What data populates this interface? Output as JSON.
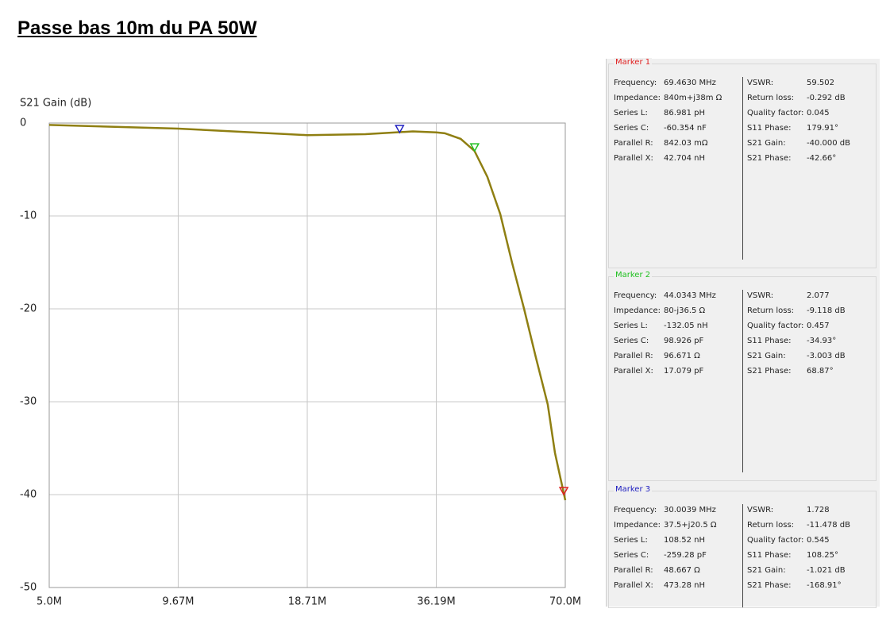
{
  "heading": "Passe bas 10m du PA 50W",
  "chart_data": {
    "type": "line",
    "y_label": "S21 Gain (dB)",
    "xscale": "log",
    "grid": true,
    "x": [
      5,
      9.67,
      18.71,
      25.2,
      32.1,
      36.19,
      37.8,
      41.0,
      44.0,
      47.0,
      50.2,
      53.3,
      56.7,
      60.2,
      64.0,
      66.4,
      70.0
    ],
    "series": [
      {
        "name": "S21 Gain",
        "color": "#8f7f12",
        "values": [
          -0.2,
          -0.6,
          -1.3,
          -1.2,
          -0.9,
          -1.0,
          -1.1,
          -1.7,
          -3.0,
          -5.8,
          -9.8,
          -15.0,
          -20.0,
          -25.2,
          -30.3,
          -35.5,
          -40.6
        ]
      }
    ],
    "xlim": [
      5,
      70
    ],
    "ylim": [
      -50,
      0
    ],
    "xticks": [
      {
        "value": 5,
        "label": "5.0M"
      },
      {
        "value": 9.67,
        "label": "9.67M"
      },
      {
        "value": 18.71,
        "label": "18.71M"
      },
      {
        "value": 36.19,
        "label": "36.19M"
      },
      {
        "value": 70,
        "label": "70.0M"
      }
    ],
    "yticks": [
      0,
      -10,
      -20,
      -30,
      -40,
      -50
    ],
    "markers": [
      {
        "x": 69.463,
        "y": -40.0,
        "color": "#e02020"
      },
      {
        "x": 44.0343,
        "y": -3.003,
        "color": "#20c020"
      },
      {
        "x": 30.0039,
        "y": -1.021,
        "color": "#2020c0"
      }
    ]
  },
  "marker_panel": [
    {
      "title": "Marker 1",
      "color": "#e02020",
      "left": [
        [
          "Frequency:",
          "69.4630 MHz"
        ],
        [
          "Impedance:",
          "840m+j38m Ω"
        ],
        [
          "Series L:",
          "86.981 pH"
        ],
        [
          "Series C:",
          "-60.354 nF"
        ],
        [
          "Parallel R:",
          "842.03 mΩ"
        ],
        [
          "Parallel X:",
          "42.704 nH"
        ]
      ],
      "right": [
        [
          "VSWR:",
          "59.502"
        ],
        [
          "Return loss:",
          "-0.292 dB"
        ],
        [
          "Quality factor:",
          "0.045"
        ],
        [
          "S11 Phase:",
          "179.91°"
        ],
        [
          "S21 Gain:",
          "-40.000 dB"
        ],
        [
          "S21 Phase:",
          "-42.66°"
        ]
      ]
    },
    {
      "title": "Marker 2",
      "color": "#20c020",
      "left": [
        [
          "Frequency:",
          "44.0343 MHz"
        ],
        [
          "Impedance:",
          "80-j36.5 Ω"
        ],
        [
          "Series L:",
          "-132.05 nH"
        ],
        [
          "Series C:",
          "98.926 pF"
        ],
        [
          "Parallel R:",
          "96.671 Ω"
        ],
        [
          "Parallel X:",
          "17.079 pF"
        ]
      ],
      "right": [
        [
          "VSWR:",
          "2.077"
        ],
        [
          "Return loss:",
          "-9.118 dB"
        ],
        [
          "Quality factor:",
          "0.457"
        ],
        [
          "S11 Phase:",
          "-34.93°"
        ],
        [
          "S21 Gain:",
          "-3.003 dB"
        ],
        [
          "S21 Phase:",
          "68.87°"
        ]
      ]
    },
    {
      "title": "Marker 3",
      "color": "#2020c0",
      "left": [
        [
          "Frequency:",
          "30.0039 MHz"
        ],
        [
          "Impedance:",
          "37.5+j20.5 Ω"
        ],
        [
          "Series L:",
          "108.52 nH"
        ],
        [
          "Series C:",
          "-259.28 pF"
        ],
        [
          "Parallel R:",
          "48.667 Ω"
        ],
        [
          "Parallel X:",
          "473.28 nH"
        ]
      ],
      "right": [
        [
          "VSWR:",
          "1.728"
        ],
        [
          "Return loss:",
          "-11.478 dB"
        ],
        [
          "Quality factor:",
          "0.545"
        ],
        [
          "S11 Phase:",
          "108.25°"
        ],
        [
          "S21 Gain:",
          "-1.021 dB"
        ],
        [
          "S21 Phase:",
          "-168.91°"
        ]
      ]
    }
  ]
}
